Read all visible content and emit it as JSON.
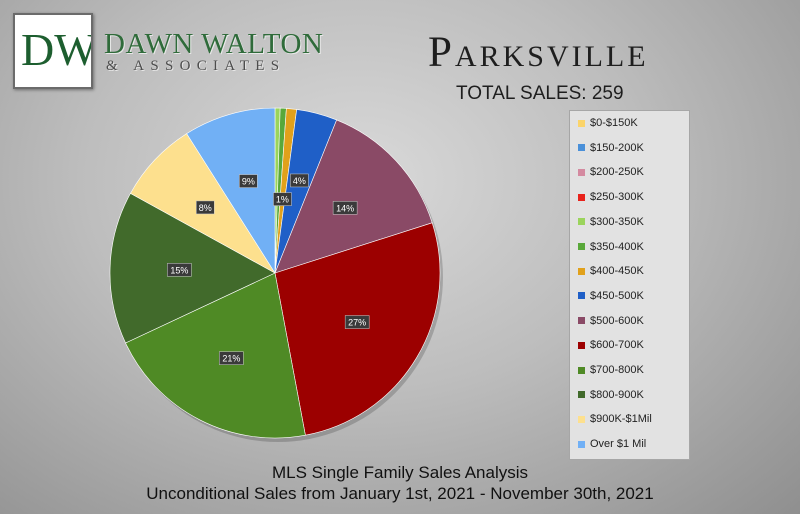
{
  "header": {
    "logo_monogram": "DW",
    "brand_name": "DAWN WALTON",
    "brand_sub": "& ASSOCIATES",
    "title": "Parksville",
    "total_sales": "TOTAL SALES: 259"
  },
  "footer": {
    "line1": "MLS Single Family Sales Analysis",
    "line2": "Unconditional Sales from January 1st, 2021 - November 30th, 2021"
  },
  "colors": {
    "brand_green": "#2f6b3a",
    "legend_bg": "#e2e2e2"
  },
  "chart_data": {
    "type": "pie",
    "title": "",
    "total": 259,
    "legend_position": "right",
    "slices": [
      {
        "label": "$0-$150K",
        "value": 0,
        "pct_label": "",
        "color": "#fbd46a"
      },
      {
        "label": "$150-200K",
        "value": 0,
        "pct_label": "",
        "color": "#4a90d9"
      },
      {
        "label": "$200-250K",
        "value": 0,
        "pct_label": "",
        "color": "#d48aa0"
      },
      {
        "label": "$250-300K",
        "value": 0,
        "pct_label": "",
        "color": "#e8221b"
      },
      {
        "label": "$300-350K",
        "value": 0.5,
        "pct_label": "",
        "color": "#9bd45c"
      },
      {
        "label": "$350-400K",
        "value": 0.6,
        "pct_label": "",
        "color": "#59a83a"
      },
      {
        "label": "$400-450K",
        "value": 1,
        "pct_label": "1%",
        "color": "#e1a11b"
      },
      {
        "label": "$450-500K",
        "value": 4,
        "pct_label": "4%",
        "color": "#1f5fc7"
      },
      {
        "label": "$500-600K",
        "value": 14,
        "pct_label": "14%",
        "color": "#8a4a66"
      },
      {
        "label": "$600-700K",
        "value": 27,
        "pct_label": "27%",
        "color": "#9c0000"
      },
      {
        "label": "$700-800K",
        "value": 21,
        "pct_label": "21%",
        "color": "#4f8a25"
      },
      {
        "label": "$800-900K",
        "value": 15,
        "pct_label": "15%",
        "color": "#416a2b"
      },
      {
        "label": "$900K-$1Mil",
        "value": 8,
        "pct_label": "8%",
        "color": "#fde08e"
      },
      {
        "label": "Over $1 Mil",
        "value": 9,
        "pct_label": "9%",
        "color": "#71b0f5"
      }
    ]
  }
}
